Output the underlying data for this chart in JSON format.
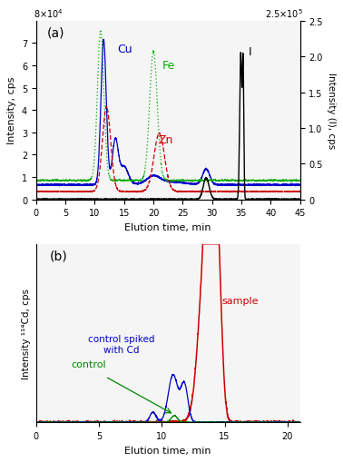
{
  "panel_a": {
    "title": "(a)",
    "xlabel": "Elution time, min",
    "ylabel_left": "Intensity, cps",
    "ylabel_right": "Intensity (I), cps",
    "xlim": [
      0,
      45
    ],
    "ylim_left": [
      0,
      80000.0
    ],
    "ylim_right": [
      0,
      250000.0
    ],
    "yticks_left": [
      0,
      10000.0,
      20000.0,
      30000.0,
      40000.0,
      50000.0,
      60000.0,
      70000.0
    ],
    "ytick_labels_left": [
      "0",
      "1",
      "2",
      "3",
      "4",
      "5",
      "6",
      "7"
    ],
    "yticks_right": [
      0,
      50000.0,
      100000.0,
      150000.0,
      200000.0,
      250000.0
    ],
    "ytick_labels_right": [
      "0",
      "0.5",
      "1.0",
      "1.5",
      "2.0",
      "2.5"
    ],
    "Cu_color": "#0000cc",
    "Fe_color": "#00aa00",
    "Zn_color": "#cc0000",
    "I_color": "#000000",
    "bg_color": "#f5f5f5"
  },
  "panel_b": {
    "title": "(b)",
    "xlabel": "Elution time, min",
    "ylabel": "Intensity ¹¹⁴Cd, cps",
    "xlim": [
      0,
      21
    ],
    "xticks": [
      0,
      5,
      10,
      15,
      20
    ],
    "sample_color": "#cc0000",
    "control_spiked_color": "#0000cc",
    "control_color": "#008800",
    "bg_color": "#f5f5f5"
  }
}
